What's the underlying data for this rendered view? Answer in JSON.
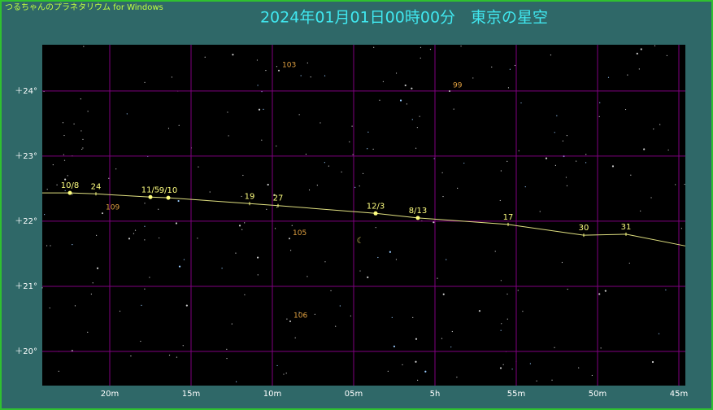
{
  "app_title": "つるちゃんのプラネタリウム for Windows",
  "chart_data": {
    "type": "path",
    "title": "2024年01月01日00時00分　東京の星空",
    "xlim": [
      84.15,
      44.6
    ],
    "xticks": [
      {
        "value": 80,
        "label": "20m"
      },
      {
        "value": 75,
        "label": "15m"
      },
      {
        "value": 70,
        "label": "10m"
      },
      {
        "value": 65,
        "label": "05m"
      },
      {
        "value": 60,
        "label": "5h"
      },
      {
        "value": 55,
        "label": "55m"
      },
      {
        "value": 50,
        "label": "50m"
      },
      {
        "value": 45,
        "label": "45m"
      }
    ],
    "ylim": [
      19.475,
      24.71
    ],
    "yticks": [
      {
        "value": 24,
        "label": "＋24°"
      },
      {
        "value": 23,
        "label": "＋23°"
      },
      {
        "value": 22,
        "label": "＋22°"
      },
      {
        "value": 21,
        "label": "＋21°"
      },
      {
        "value": 20,
        "label": "＋20°"
      }
    ],
    "grid": true,
    "grid_color": "#800080",
    "path": {
      "color": "#e0e080",
      "x": [
        84.15,
        82.45,
        80.85,
        77.5,
        76.4,
        71.4,
        69.65,
        63.65,
        61.05,
        55.5,
        50.85,
        48.25,
        44.6
      ],
      "values": [
        22.435,
        22.435,
        22.42,
        22.37,
        22.36,
        22.27,
        22.24,
        22.12,
        22.05,
        21.95,
        21.785,
        21.8,
        21.62
      ]
    },
    "points": [
      {
        "label": "10/8",
        "x": 82.45,
        "y": 22.435,
        "marker": "dot"
      },
      {
        "label": "24",
        "x": 80.85,
        "y": 22.42,
        "marker": "tick"
      },
      {
        "label": "11/5",
        "x": 77.5,
        "y": 22.37,
        "marker": "dot"
      },
      {
        "label": "9/10",
        "x": 76.4,
        "y": 22.36,
        "marker": "dot"
      },
      {
        "label": "19",
        "x": 71.4,
        "y": 22.27,
        "marker": "tick"
      },
      {
        "label": "27",
        "x": 69.65,
        "y": 22.24,
        "marker": "tick"
      },
      {
        "label": "12/3",
        "x": 63.65,
        "y": 22.12,
        "marker": "dot"
      },
      {
        "label": "8/13",
        "x": 61.05,
        "y": 22.05,
        "marker": "dot"
      },
      {
        "label": "17",
        "x": 55.5,
        "y": 21.95,
        "marker": "tick"
      },
      {
        "label": "30",
        "x": 50.85,
        "y": 21.785,
        "marker": "tick"
      },
      {
        "label": "31",
        "x": 48.25,
        "y": 21.8,
        "marker": "tick"
      }
    ],
    "objects": [
      {
        "label": "103",
        "x": 69.4,
        "y": 24.4
      },
      {
        "label": "99",
        "x": 58.9,
        "y": 24.085
      },
      {
        "label": "109",
        "x": 80.25,
        "y": 22.21
      },
      {
        "label": "105",
        "x": 68.75,
        "y": 21.82
      },
      {
        "label": "106",
        "x": 68.7,
        "y": 20.55
      }
    ],
    "moon": {
      "label": "☾",
      "x": 64.6,
      "y": 21.7
    }
  }
}
